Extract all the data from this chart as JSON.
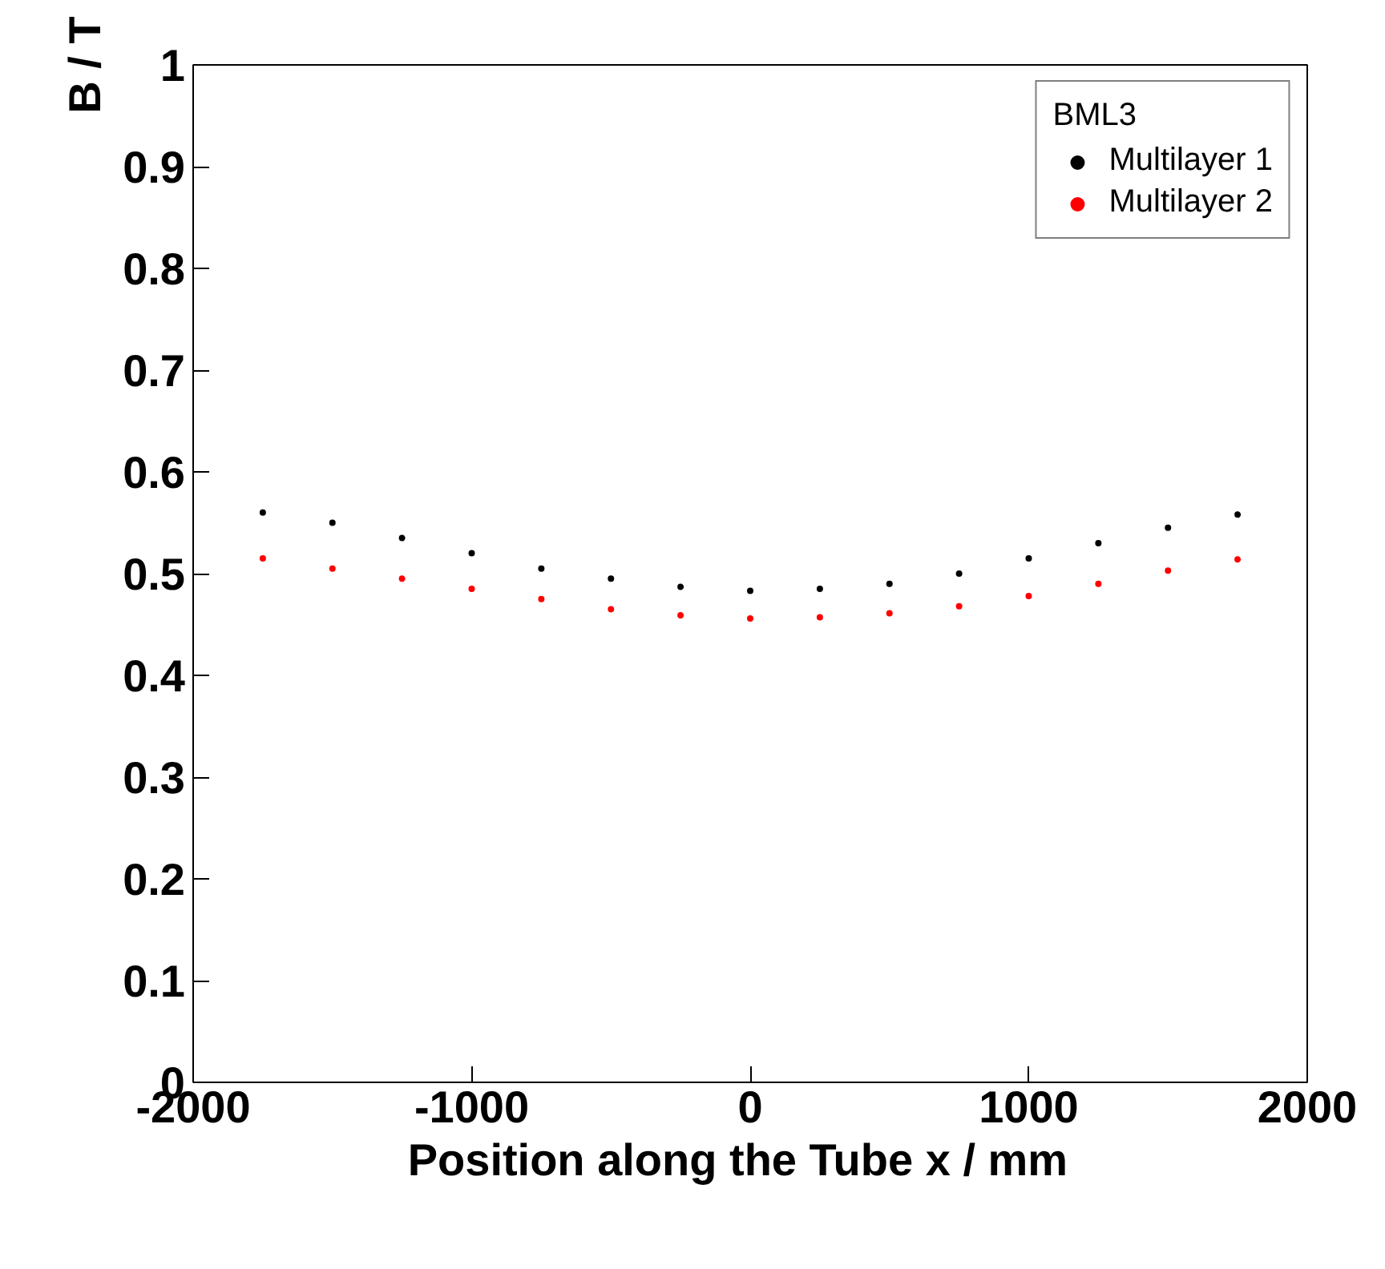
{
  "chart_data": {
    "type": "scatter",
    "xlabel": "Position along the Tube   x / mm",
    "ylabel": "B / T",
    "legend_title": "BML3",
    "x": [
      -1750,
      -1500,
      -1250,
      -1000,
      -750,
      -500,
      -250,
      0,
      250,
      500,
      750,
      1000,
      1250,
      1500,
      1750
    ],
    "series": [
      {
        "name": "Multilayer 1",
        "color": "#000000",
        "values": [
          0.56,
          0.55,
          0.535,
          0.52,
          0.505,
          0.495,
          0.487,
          0.483,
          0.485,
          0.49,
          0.5,
          0.515,
          0.53,
          0.545,
          0.558
        ]
      },
      {
        "name": "Multilayer 2",
        "color": "#ff0000",
        "values": [
          0.515,
          0.505,
          0.495,
          0.485,
          0.475,
          0.465,
          0.459,
          0.456,
          0.457,
          0.461,
          0.468,
          0.478,
          0.49,
          0.503,
          0.514
        ]
      }
    ],
    "xlim": [
      -2000,
      2000
    ],
    "ylim": [
      0,
      1
    ],
    "xticks": [
      -2000,
      -1000,
      0,
      1000,
      2000
    ],
    "yticks": [
      0,
      0.1,
      0.2,
      0.3,
      0.4,
      0.5,
      0.6,
      0.7,
      0.8,
      0.9,
      1
    ],
    "grid": false,
    "legend": "top right",
    "marker": "circle"
  }
}
